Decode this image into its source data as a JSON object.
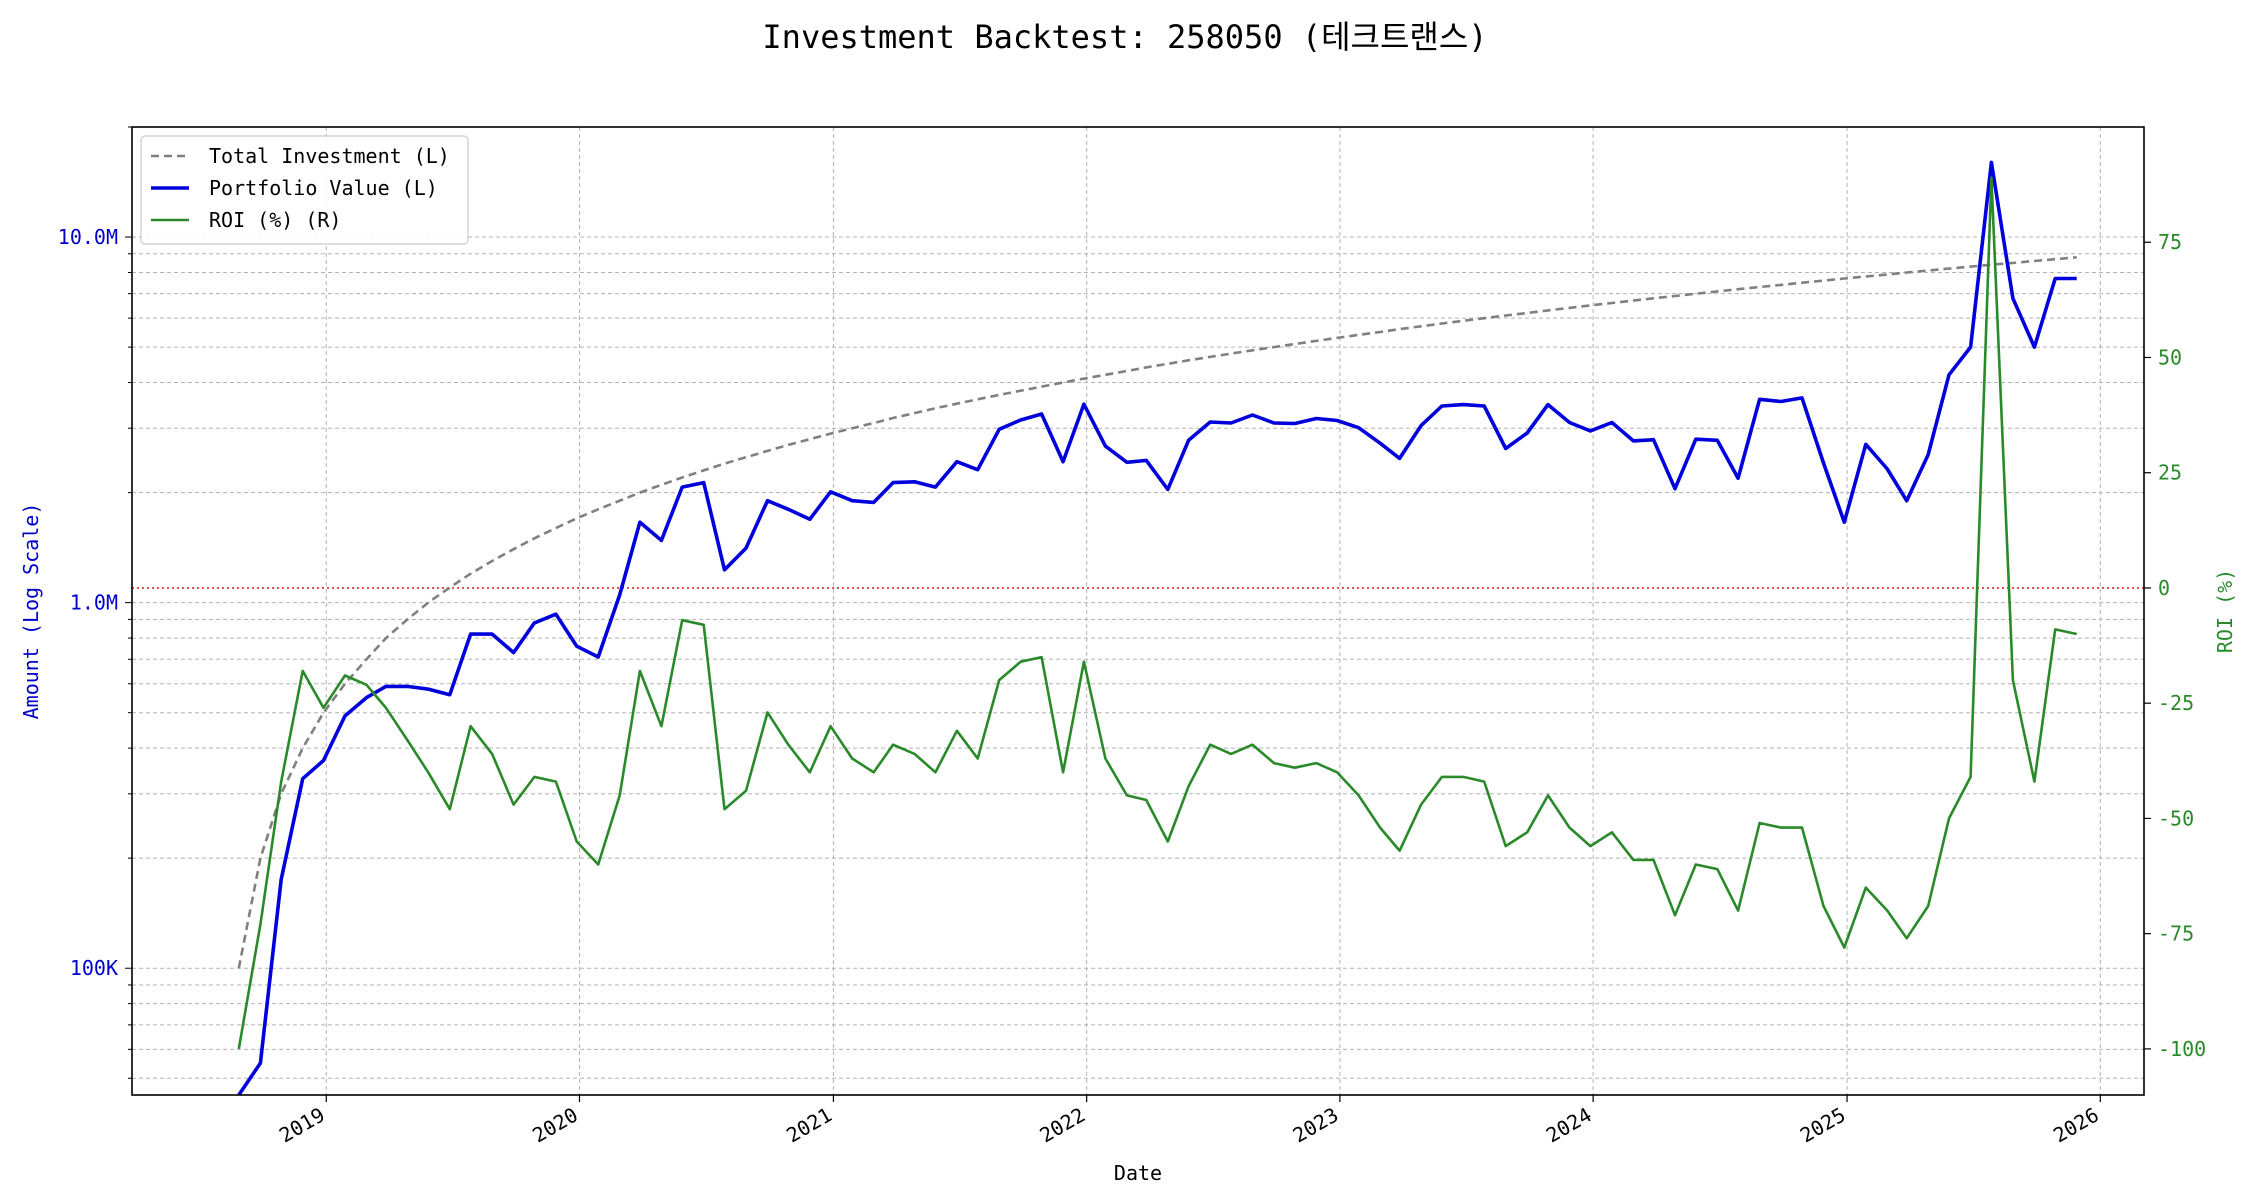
{
  "chart_data": {
    "type": "line",
    "title": "Investment Backtest: 258050 (테크트랜스)",
    "xlabel": "Date",
    "ylabel_left": "Amount (Log Scale)",
    "ylabel_right": "ROI (%)",
    "left_axis": {
      "scale": "log",
      "ylim": [
        45000,
        20000000
      ],
      "tick_labels": [
        {
          "value": 100000,
          "label": "100K"
        },
        {
          "value": 1000000,
          "label": "1.0M"
        },
        {
          "value": 10000000,
          "label": "10.0M"
        }
      ]
    },
    "right_axis": {
      "scale": "linear",
      "ylim": [
        -110,
        100
      ],
      "ticks": [
        -100,
        -75,
        -50,
        -25,
        0,
        25,
        50,
        75
      ]
    },
    "x_ticks": [
      "2019",
      "2020",
      "2021",
      "2022",
      "2023",
      "2024",
      "2025",
      "2026"
    ],
    "grid": true,
    "legend_position": "upper-left",
    "zero_line": {
      "axis": "right",
      "value": 0,
      "color": "#d62728",
      "style": "dotted"
    },
    "colors": {
      "investment": "#808080",
      "portfolio": "#0000dd",
      "roi": "#2a8a2a",
      "left_axis": "#0000cc",
      "right_axis": "#2a8a2a"
    },
    "series": [
      {
        "name": "Total Investment (L)",
        "axis": "left",
        "style": "dashed",
        "x": [
          "2018-08",
          "2018-09",
          "2018-10",
          "2018-11",
          "2018-12",
          "2019-01",
          "2019-02",
          "2019-03",
          "2019-04",
          "2019-05",
          "2019-06",
          "2019-07",
          "2019-08",
          "2019-09",
          "2019-10",
          "2019-11",
          "2019-12",
          "2020-01",
          "2020-02",
          "2020-03",
          "2020-04",
          "2020-05",
          "2020-06",
          "2020-07",
          "2020-08",
          "2020-09",
          "2020-10",
          "2020-11",
          "2020-12",
          "2021-01",
          "2021-02",
          "2021-03",
          "2021-04",
          "2021-05",
          "2021-06",
          "2021-07",
          "2021-08",
          "2021-09",
          "2021-10",
          "2021-11",
          "2021-12",
          "2022-01",
          "2022-02",
          "2022-03",
          "2022-04",
          "2022-05",
          "2022-06",
          "2022-07",
          "2022-08",
          "2022-09",
          "2022-10",
          "2022-11",
          "2022-12",
          "2023-01",
          "2023-02",
          "2023-03",
          "2023-04",
          "2023-05",
          "2023-06",
          "2023-07",
          "2023-08",
          "2023-09",
          "2023-10",
          "2023-11",
          "2023-12",
          "2024-01",
          "2024-02",
          "2024-03",
          "2024-04",
          "2024-05",
          "2024-06",
          "2024-07",
          "2024-08",
          "2024-09",
          "2024-10",
          "2024-11",
          "2024-12",
          "2025-01",
          "2025-02",
          "2025-03",
          "2025-04",
          "2025-05",
          "2025-06",
          "2025-07",
          "2025-08",
          "2025-09",
          "2025-10",
          "2025-11"
        ],
        "values": [
          100000,
          200000,
          300000,
          400000,
          500000,
          600000,
          700000,
          800000,
          900000,
          1000000,
          1100000,
          1200000,
          1300000,
          1400000,
          1500000,
          1600000,
          1700000,
          1800000,
          1900000,
          2000000,
          2100000,
          2200000,
          2300000,
          2400000,
          2500000,
          2600000,
          2700000,
          2800000,
          2900000,
          3000000,
          3100000,
          3200000,
          3300000,
          3400000,
          3500000,
          3600000,
          3700000,
          3800000,
          3900000,
          4000000,
          4100000,
          4200000,
          4300000,
          4400000,
          4500000,
          4600000,
          4700000,
          4800000,
          4900000,
          5000000,
          5100000,
          5200000,
          5300000,
          5400000,
          5500000,
          5600000,
          5700000,
          5800000,
          5900000,
          6000000,
          6100000,
          6200000,
          6300000,
          6400000,
          6500000,
          6600000,
          6700000,
          6800000,
          6900000,
          7000000,
          7100000,
          7200000,
          7300000,
          7400000,
          7500000,
          7600000,
          7700000,
          7800000,
          7900000,
          8000000,
          8100000,
          8200000,
          8300000,
          8400000,
          8500000,
          8600000,
          8700000,
          8800000
        ]
      },
      {
        "name": "Portfolio Value (L)",
        "axis": "left",
        "style": "solid",
        "x": [
          "2018-08",
          "2018-09",
          "2018-10",
          "2018-11",
          "2018-12",
          "2019-01",
          "2019-02",
          "2019-03",
          "2019-04",
          "2019-05",
          "2019-06",
          "2019-07",
          "2019-08",
          "2019-09",
          "2019-10",
          "2019-11",
          "2019-12",
          "2020-01",
          "2020-02",
          "2020-03",
          "2020-04",
          "2020-05",
          "2020-06",
          "2020-07",
          "2020-08",
          "2020-09",
          "2020-10",
          "2020-11",
          "2020-12",
          "2021-01",
          "2021-02",
          "2021-03",
          "2021-04",
          "2021-05",
          "2021-06",
          "2021-07",
          "2021-08",
          "2021-09",
          "2021-10",
          "2021-11",
          "2021-12",
          "2022-01",
          "2022-02",
          "2022-03",
          "2022-04",
          "2022-05",
          "2022-06",
          "2022-07",
          "2022-08",
          "2022-09",
          "2022-10",
          "2022-11",
          "2022-12",
          "2023-01",
          "2023-02",
          "2023-03",
          "2023-04",
          "2023-05",
          "2023-06",
          "2023-07",
          "2023-08",
          "2023-09",
          "2023-10",
          "2023-11",
          "2023-12",
          "2024-01",
          "2024-02",
          "2024-03",
          "2024-04",
          "2024-05",
          "2024-06",
          "2024-07",
          "2024-08",
          "2024-09",
          "2024-10",
          "2024-11",
          "2024-12",
          "2025-01",
          "2025-02",
          "2025-03",
          "2025-04",
          "2025-05",
          "2025-06",
          "2025-07",
          "2025-08",
          "2025-09",
          "2025-10",
          "2025-11"
        ],
        "values": [
          null,
          55000,
          175000,
          330000,
          370000,
          490000,
          550000,
          590000,
          590000,
          580000,
          560000,
          820000,
          820000,
          730000,
          880000,
          930000,
          760000,
          710000,
          1050000,
          1660000,
          1480000,
          2070000,
          2130000,
          1230000,
          1410000,
          1900000,
          1800000,
          1690000,
          2010000,
          1900000,
          1880000,
          2130000,
          2140000,
          2070000,
          2430000,
          2310000,
          2980000,
          3160000,
          3280000,
          2430000,
          3490000,
          2680000,
          2420000,
          2450000,
          2040000,
          2780000,
          3120000,
          3100000,
          3260000,
          3100000,
          3090000,
          3190000,
          3150000,
          3010000,
          2730000,
          2480000,
          3050000,
          3450000,
          3480000,
          3450000,
          2640000,
          2910000,
          3480000,
          3110000,
          2950000,
          3110000,
          2770000,
          2790000,
          2050000,
          2800000,
          2780000,
          2190000,
          3600000,
          3550000,
          3630000,
          2410000,
          1660000,
          2710000,
          2320000,
          1900000,
          2540000,
          4200000,
          5000000,
          16000000,
          6800000,
          5000000,
          7700000,
          7700000
        ]
      },
      {
        "name": "ROI (%) (R)",
        "axis": "right",
        "style": "solid",
        "x": [
          "2018-08",
          "2018-09",
          "2018-10",
          "2018-11",
          "2018-12",
          "2019-01",
          "2019-02",
          "2019-03",
          "2019-04",
          "2019-05",
          "2019-06",
          "2019-07",
          "2019-08",
          "2019-09",
          "2019-10",
          "2019-11",
          "2019-12",
          "2020-01",
          "2020-02",
          "2020-03",
          "2020-04",
          "2020-05",
          "2020-06",
          "2020-07",
          "2020-08",
          "2020-09",
          "2020-10",
          "2020-11",
          "2020-12",
          "2021-01",
          "2021-02",
          "2021-03",
          "2021-04",
          "2021-05",
          "2021-06",
          "2021-07",
          "2021-08",
          "2021-09",
          "2021-10",
          "2021-11",
          "2021-12",
          "2022-01",
          "2022-02",
          "2022-03",
          "2022-04",
          "2022-05",
          "2022-06",
          "2022-07",
          "2022-08",
          "2022-09",
          "2022-10",
          "2022-11",
          "2022-12",
          "2023-01",
          "2023-02",
          "2023-03",
          "2023-04",
          "2023-05",
          "2023-06",
          "2023-07",
          "2023-08",
          "2023-09",
          "2023-10",
          "2023-11",
          "2023-12",
          "2024-01",
          "2024-02",
          "2024-03",
          "2024-04",
          "2024-05",
          "2024-06",
          "2024-07",
          "2024-08",
          "2024-09",
          "2024-10",
          "2024-11",
          "2024-12",
          "2025-01",
          "2025-02",
          "2025-03",
          "2025-04",
          "2025-05",
          "2025-06",
          "2025-07",
          "2025-08",
          "2025-09",
          "2025-10",
          "2025-11"
        ],
        "values": [
          -100,
          -73,
          -42,
          -18,
          -26,
          -19,
          -21,
          -26,
          -33,
          -40,
          -48,
          -30,
          -36,
          -47,
          -41,
          -42,
          -55,
          -60,
          -45,
          -18,
          -30,
          -7,
          -8,
          -48,
          -44,
          -27,
          -34,
          -40,
          -30,
          -37,
          -40,
          -34,
          -36,
          -40,
          -31,
          -37,
          -20,
          -16,
          -15,
          -40,
          -16,
          -37,
          -45,
          -46,
          -55,
          -43,
          -34,
          -36,
          -34,
          -38,
          -39,
          -38,
          -40,
          -45,
          -52,
          -57,
          -47,
          -41,
          -41,
          -42,
          -56,
          -53,
          -45,
          -52,
          -56,
          -53,
          -59,
          -59,
          -71,
          -60,
          -61,
          -70,
          -51,
          -52,
          -52,
          -69,
          -78,
          -65,
          -70,
          -76,
          -69,
          -50,
          -41,
          89,
          -20,
          -42,
          -9,
          -10
        ]
      }
    ]
  }
}
